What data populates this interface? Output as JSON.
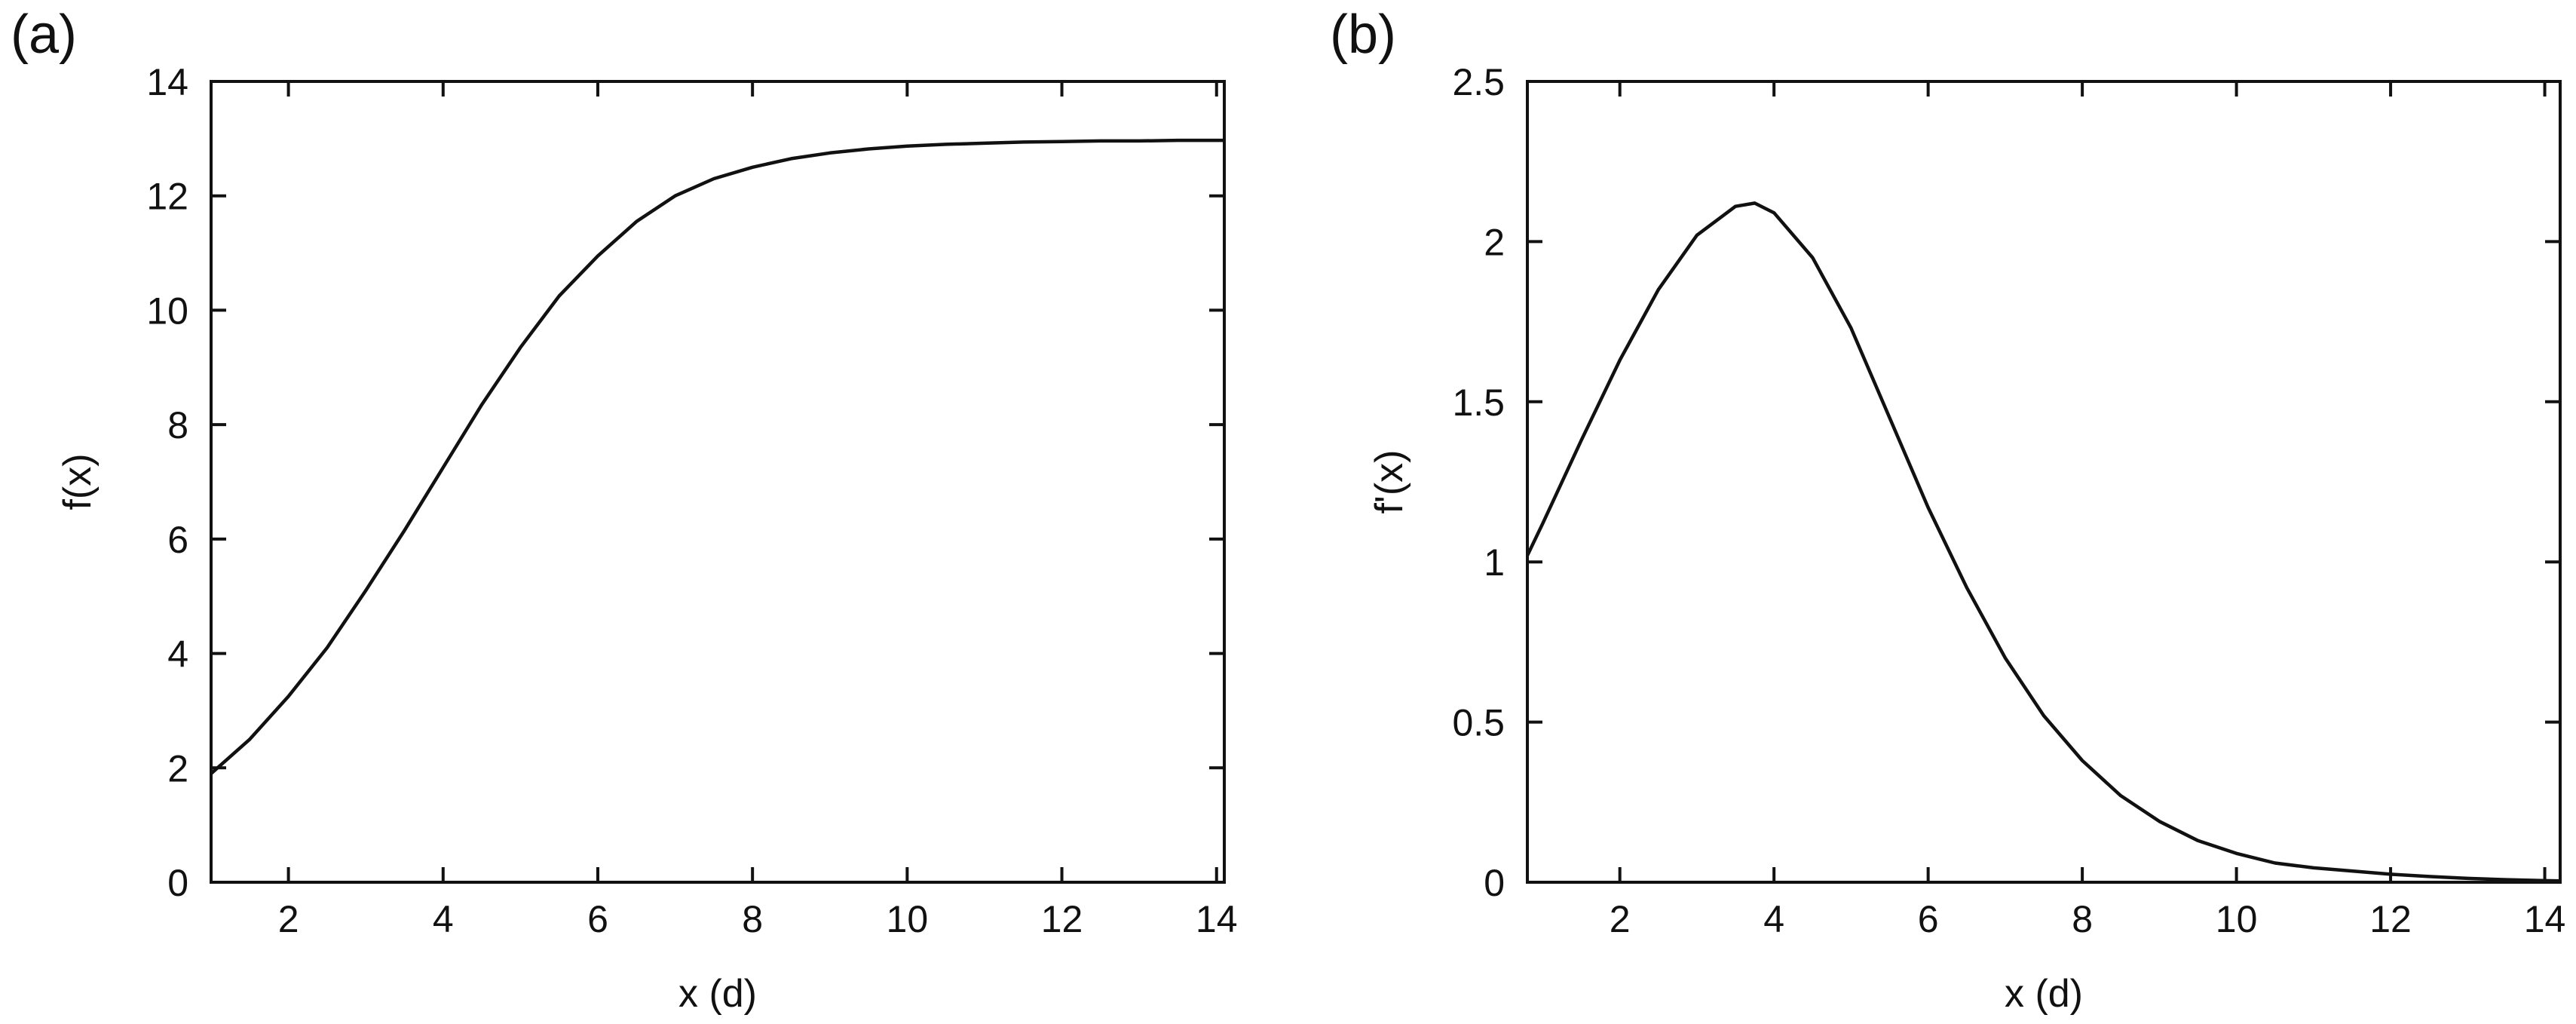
{
  "chart_data": [
    {
      "type": "line",
      "panel_label": "(a)",
      "xlabel": "x (d)",
      "ylabel": "f(x)",
      "xlim": [
        1,
        14.1
      ],
      "ylim": [
        0,
        14
      ],
      "xticks": [
        2,
        4,
        6,
        8,
        10,
        12,
        14
      ],
      "yticks": [
        0,
        2,
        4,
        6,
        8,
        10,
        12,
        14
      ],
      "xtick_labels": [
        "2",
        "4",
        "6",
        "8",
        "10",
        "12",
        "14"
      ],
      "ytick_labels": [
        "0",
        "2",
        "4",
        "6",
        "8",
        "10",
        "12",
        "14"
      ],
      "grid": false,
      "series": [
        {
          "color": "#111111",
          "x": [
            1.0,
            1.5,
            2.0,
            2.5,
            3.0,
            3.5,
            4.0,
            4.5,
            5.0,
            5.5,
            6.0,
            6.5,
            7.0,
            7.5,
            8.0,
            8.5,
            9.0,
            9.5,
            10.0,
            10.5,
            11.0,
            11.5,
            12.0,
            12.5,
            13.0,
            13.5,
            14.0,
            14.1
          ],
          "y": [
            1.9,
            2.5,
            3.25,
            4.1,
            5.1,
            6.15,
            7.25,
            8.35,
            9.35,
            10.25,
            10.95,
            11.55,
            12.0,
            12.3,
            12.5,
            12.65,
            12.75,
            12.82,
            12.87,
            12.9,
            12.92,
            12.94,
            12.95,
            12.96,
            12.96,
            12.97,
            12.97,
            12.97
          ]
        }
      ]
    },
    {
      "type": "line",
      "panel_label": "(b)",
      "xlabel": "x (d)",
      "ylabel": "f'(x)",
      "xlim": [
        0.8,
        14.2
      ],
      "ylim": [
        0,
        2.5
      ],
      "xticks": [
        2,
        4,
        6,
        8,
        10,
        12,
        14
      ],
      "yticks": [
        0,
        0.5,
        1,
        1.5,
        2,
        2.5
      ],
      "xtick_labels": [
        "2",
        "4",
        "6",
        "8",
        "10",
        "12",
        "14"
      ],
      "ytick_labels": [
        "0",
        "0.5",
        "1",
        "1.5",
        "2",
        "2.5"
      ],
      "grid": false,
      "series": [
        {
          "color": "#111111",
          "x": [
            0.8,
            1.0,
            1.5,
            2.0,
            2.5,
            3.0,
            3.5,
            3.75,
            4.0,
            4.5,
            5.0,
            5.5,
            6.0,
            6.5,
            7.0,
            7.5,
            8.0,
            8.5,
            9.0,
            9.5,
            10.0,
            10.5,
            11.0,
            11.5,
            12.0,
            12.5,
            13.0,
            13.5,
            14.0,
            14.2
          ],
          "y": [
            1.02,
            1.12,
            1.38,
            1.63,
            1.85,
            2.02,
            2.11,
            2.12,
            2.09,
            1.95,
            1.73,
            1.45,
            1.17,
            0.92,
            0.7,
            0.52,
            0.38,
            0.27,
            0.19,
            0.13,
            0.09,
            0.06,
            0.045,
            0.035,
            0.025,
            0.018,
            0.012,
            0.008,
            0.005,
            0.004
          ]
        }
      ]
    }
  ]
}
